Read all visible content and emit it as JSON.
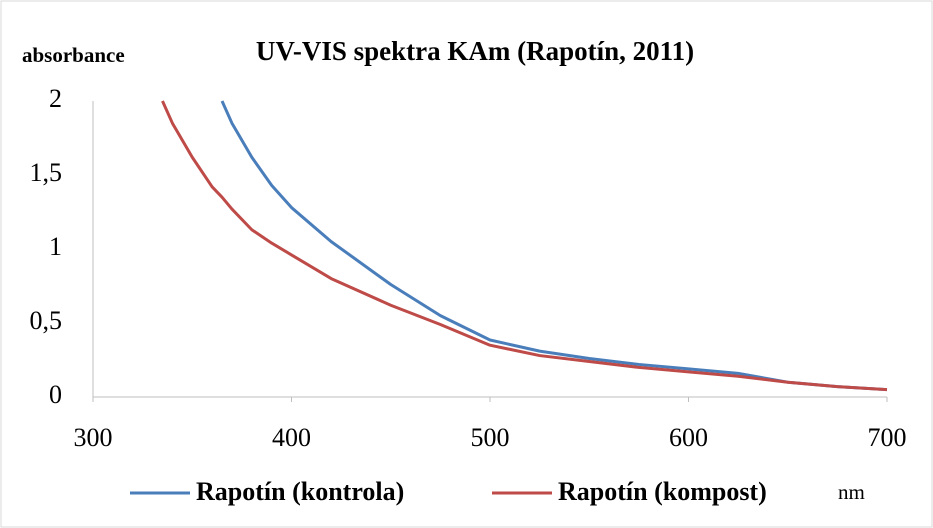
{
  "chart_data": {
    "type": "line",
    "title": "UV-VIS spektra KAm (Rapotín, 2011)",
    "y_label": "absorbance",
    "x_label": "nm",
    "x": [
      335,
      340,
      350,
      360,
      365,
      370,
      380,
      390,
      400,
      420,
      450,
      475,
      500,
      525,
      550,
      575,
      600,
      625,
      650,
      675,
      700
    ],
    "series": [
      {
        "name": "Rapotín (kontrola)",
        "color": "#4a7ebb",
        "values": [
          null,
          null,
          null,
          null,
          2.0,
          1.85,
          1.62,
          1.43,
          1.28,
          1.05,
          0.76,
          0.55,
          0.385,
          0.31,
          0.26,
          0.22,
          0.19,
          0.16,
          0.1,
          0.07,
          0.05
        ]
      },
      {
        "name": "Rapotín (kompost)",
        "color": "#be4b48",
        "values": [
          2.0,
          1.85,
          1.62,
          1.42,
          1.35,
          1.27,
          1.13,
          1.04,
          0.96,
          0.8,
          0.62,
          0.49,
          0.35,
          0.28,
          0.24,
          0.2,
          0.17,
          0.14,
          0.1,
          0.07,
          0.05
        ]
      }
    ],
    "xlim": [
      300,
      700
    ],
    "xticks": [
      300,
      400,
      500,
      600,
      700
    ],
    "ylim": [
      0,
      2
    ],
    "yticks": [
      0,
      {
        "value": 0.5,
        "label": "0,5"
      },
      1,
      {
        "value": 1.5,
        "label": "1,5"
      },
      2
    ],
    "legend": "bottom",
    "grid": false
  }
}
